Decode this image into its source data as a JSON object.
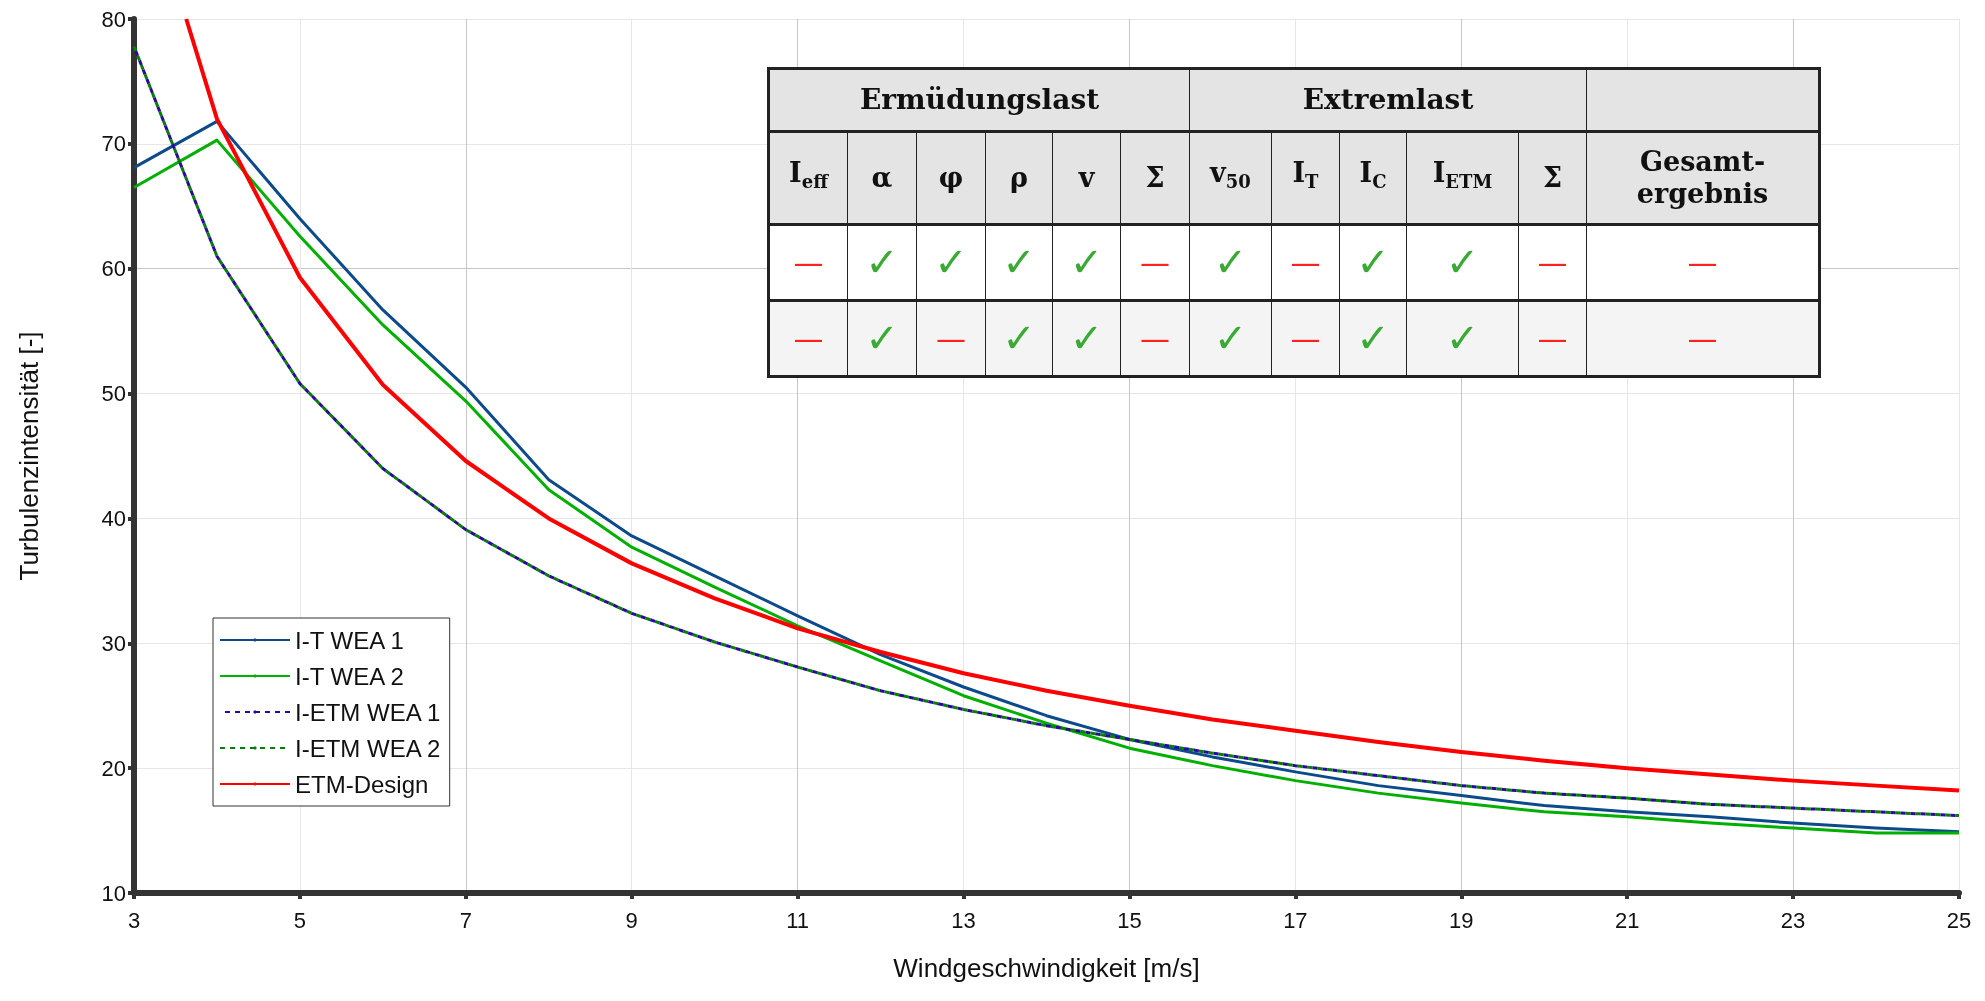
{
  "chart_data": {
    "type": "line",
    "xlabel": "Windgeschwindigkeit [m/s]",
    "ylabel": "Turbulenzintensität [-]",
    "x": [
      3,
      4,
      5,
      6,
      7,
      8,
      9,
      10,
      11,
      12,
      13,
      14,
      15,
      16,
      17,
      18,
      19,
      20,
      21,
      22,
      23,
      24,
      25
    ],
    "xlim": [
      3,
      25
    ],
    "xticks": [
      3,
      5,
      7,
      9,
      11,
      13,
      15,
      17,
      19,
      21,
      23,
      25
    ],
    "ylim": [
      10,
      80
    ],
    "yticks": [
      10,
      20,
      30,
      40,
      50,
      60,
      70,
      80
    ],
    "grid": true,
    "legend": "bottom left",
    "series": [
      {
        "name": "I-T WEA 1",
        "color": "#0b4a8b",
        "line_style": "solid",
        "values": [
          68.1,
          71.8,
          64,
          56.7,
          50.5,
          43.1,
          38.6,
          35.4,
          32.2,
          29.1,
          26.5,
          24.2,
          22.3,
          20.9,
          19.7,
          18.6,
          17.8,
          17.0,
          16.5,
          16.1,
          15.6,
          15.2,
          14.9
        ]
      },
      {
        "name": "I-T WEA 2",
        "color": "#00b000",
        "line_style": "solid",
        "values": [
          66.5,
          70.3,
          62.6,
          55.5,
          49.4,
          42.3,
          37.7,
          34.5,
          31.4,
          28.6,
          25.8,
          23.6,
          21.6,
          20.2,
          19.0,
          18.0,
          17.2,
          16.5,
          16.1,
          15.6,
          15.2,
          14.8,
          14.8
        ]
      },
      {
        "name": "I-ETM WEA 2",
        "color": "#008000",
        "line_style": "dashed",
        "values": [
          77.8,
          61,
          50.8,
          44.0,
          39.1,
          35.4,
          32.4,
          30.1,
          28.1,
          26.2,
          24.7,
          23.4,
          22.3,
          21.2,
          20.2,
          19.4,
          18.6,
          18.0,
          17.6,
          17.1,
          16.8,
          16.5,
          16.2
        ]
      },
      {
        "name": "I-ETM WEA 1",
        "color": "#2a0a9a",
        "line_style": "dashed",
        "values": [
          77.8,
          61,
          50.8,
          44.0,
          39.1,
          35.4,
          32.4,
          30.1,
          28.1,
          26.2,
          24.7,
          23.4,
          22.3,
          21.2,
          20.2,
          19.4,
          18.6,
          18.0,
          17.6,
          17.1,
          16.8,
          16.5,
          16.2
        ]
      },
      {
        "name": "ETM-Design",
        "color": "#ff0000",
        "line_style": "solid",
        "x": [
          3.63,
          4,
          5,
          6,
          7,
          8,
          9,
          10,
          11,
          12,
          13,
          14,
          15,
          16,
          17,
          18,
          19,
          20,
          21,
          22,
          23,
          24,
          25
        ],
        "values": [
          80,
          72,
          59.3,
          50.7,
          44.6,
          40.0,
          36.4,
          33.6,
          31.2,
          29.3,
          27.6,
          26.2,
          25.0,
          23.9,
          23.0,
          22.1,
          21.3,
          20.6,
          20.0,
          19.5,
          19.0,
          18.6,
          18.2
        ]
      }
    ],
    "annotations": [
      "Ermüdungslast",
      "Extremlast",
      "I$_{eff}$",
      "α",
      "φ",
      "ρ",
      "v",
      "Σ",
      "v$_{50}$",
      "I$_{T}$",
      "I$_{C}$",
      "I$_{ETM}$",
      "Σ",
      "Gesamt-\nergebnis",
      "—",
      "✓",
      "✓",
      "✓",
      "✓",
      "—",
      "✓",
      "—",
      "✓",
      "✓",
      "—",
      "—",
      "—",
      "✓",
      "—",
      "✓",
      "✓",
      "—",
      "✓",
      "—",
      "✓",
      "✓",
      "—",
      "—"
    ]
  }
}
